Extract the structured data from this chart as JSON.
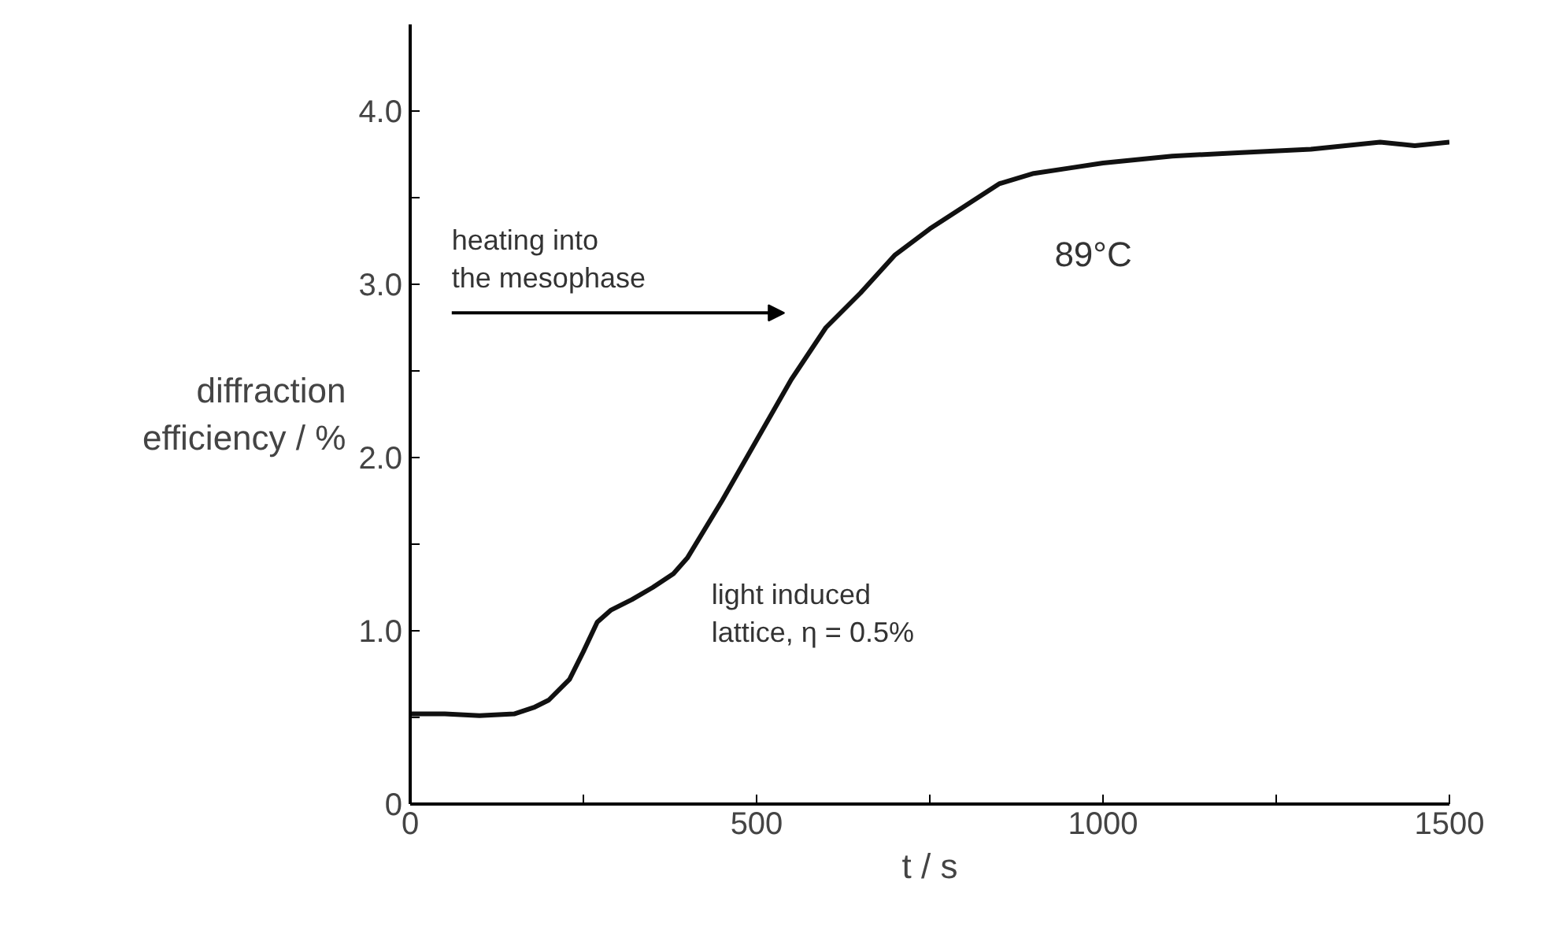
{
  "chart_data": {
    "type": "line",
    "xlabel": "t / s",
    "ylabel": "diffraction\nefficiency / %",
    "x": [
      0,
      50,
      100,
      150,
      180,
      200,
      230,
      250,
      270,
      290,
      320,
      350,
      380,
      400,
      450,
      500,
      550,
      600,
      650,
      700,
      750,
      800,
      850,
      900,
      950,
      1000,
      1100,
      1200,
      1300,
      1400,
      1450,
      1500
    ],
    "series": [
      {
        "color": "#111111",
        "values": [
          0.52,
          0.52,
          0.51,
          0.52,
          0.56,
          0.6,
          0.72,
          0.88,
          1.05,
          1.12,
          1.18,
          1.25,
          1.33,
          1.42,
          1.75,
          2.1,
          2.45,
          2.75,
          2.95,
          3.17,
          3.32,
          3.45,
          3.58,
          3.64,
          3.67,
          3.7,
          3.74,
          3.76,
          3.78,
          3.82,
          3.8,
          3.82
        ]
      }
    ],
    "xlim": [
      0,
      1500
    ],
    "ylim": [
      0,
      4.5
    ],
    "xticks": [
      0,
      {
        "value": 250,
        "label": null
      },
      500,
      {
        "value": 750,
        "label": null
      },
      1000,
      {
        "value": 1250,
        "label": null
      },
      1500
    ],
    "yticks": [
      0,
      {
        "value": 0.5,
        "label": null
      },
      {
        "value": 1,
        "label": "1.0"
      },
      {
        "value": 1.5,
        "label": null
      },
      {
        "value": 2,
        "label": "2.0"
      },
      {
        "value": 2.5,
        "label": null
      },
      {
        "value": 3,
        "label": "3.0"
      },
      {
        "value": 3.5,
        "label": null
      },
      {
        "value": 4,
        "label": "4.0"
      }
    ],
    "annotations": [
      "heating into\nthe mesophase",
      "89°C",
      "light induced\nlattice, η = 0.5%"
    ],
    "marker": "none",
    "line_style": "solid"
  }
}
